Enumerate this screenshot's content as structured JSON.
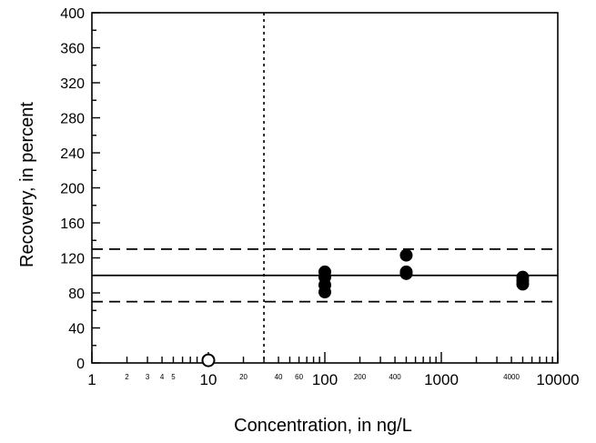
{
  "chart_data": {
    "type": "scatter",
    "xscale": "log",
    "xlim": [
      1,
      10000
    ],
    "ylim": [
      0,
      400
    ],
    "xlabel": "Concentration, in ng/L",
    "ylabel": "Recovery, in percent",
    "grid": false,
    "legend": "none",
    "major_ticks_x": [
      {
        "value": 1,
        "label": "1"
      },
      {
        "value": 10,
        "label": "10"
      },
      {
        "value": 100,
        "label": "100"
      },
      {
        "value": 1000,
        "label": "1000"
      },
      {
        "value": 10000,
        "label": "10000"
      }
    ],
    "minor_tick_labels_x": [
      {
        "value": 2,
        "label": "2"
      },
      {
        "value": 3,
        "label": "3"
      },
      {
        "value": 4,
        "label": "4"
      },
      {
        "value": 5,
        "label": "5"
      },
      {
        "value": 20,
        "label": "20"
      },
      {
        "value": 40,
        "label": "40"
      },
      {
        "value": 60,
        "label": "60"
      },
      {
        "value": 200,
        "label": "200"
      },
      {
        "value": 400,
        "label": "400"
      },
      {
        "value": 4000,
        "label": "4000"
      }
    ],
    "yticks": [
      0,
      40,
      80,
      120,
      160,
      200,
      240,
      280,
      320,
      360,
      400
    ],
    "yminor_step": 20,
    "reference_lines": [
      {
        "axis": "y",
        "value": 100,
        "style": "solid"
      },
      {
        "axis": "y",
        "value": 130,
        "style": "dashed"
      },
      {
        "axis": "y",
        "value": 70,
        "style": "dashed"
      },
      {
        "axis": "x",
        "value": 30,
        "style": "dotted"
      }
    ],
    "series": [
      {
        "marker": "filled-circle",
        "points": [
          {
            "x": 100,
            "y": 104
          },
          {
            "x": 100,
            "y": 98
          },
          {
            "x": 100,
            "y": 89
          },
          {
            "x": 100,
            "y": 81
          },
          {
            "x": 500,
            "y": 123
          },
          {
            "x": 500,
            "y": 104
          },
          {
            "x": 500,
            "y": 102
          },
          {
            "x": 5000,
            "y": 98
          },
          {
            "x": 5000,
            "y": 94
          },
          {
            "x": 5000,
            "y": 90
          }
        ]
      },
      {
        "marker": "open-circle",
        "points": [
          {
            "x": 10,
            "y": 3
          }
        ]
      }
    ],
    "colors": {
      "ink": "#000000",
      "background": "#ffffff"
    }
  }
}
